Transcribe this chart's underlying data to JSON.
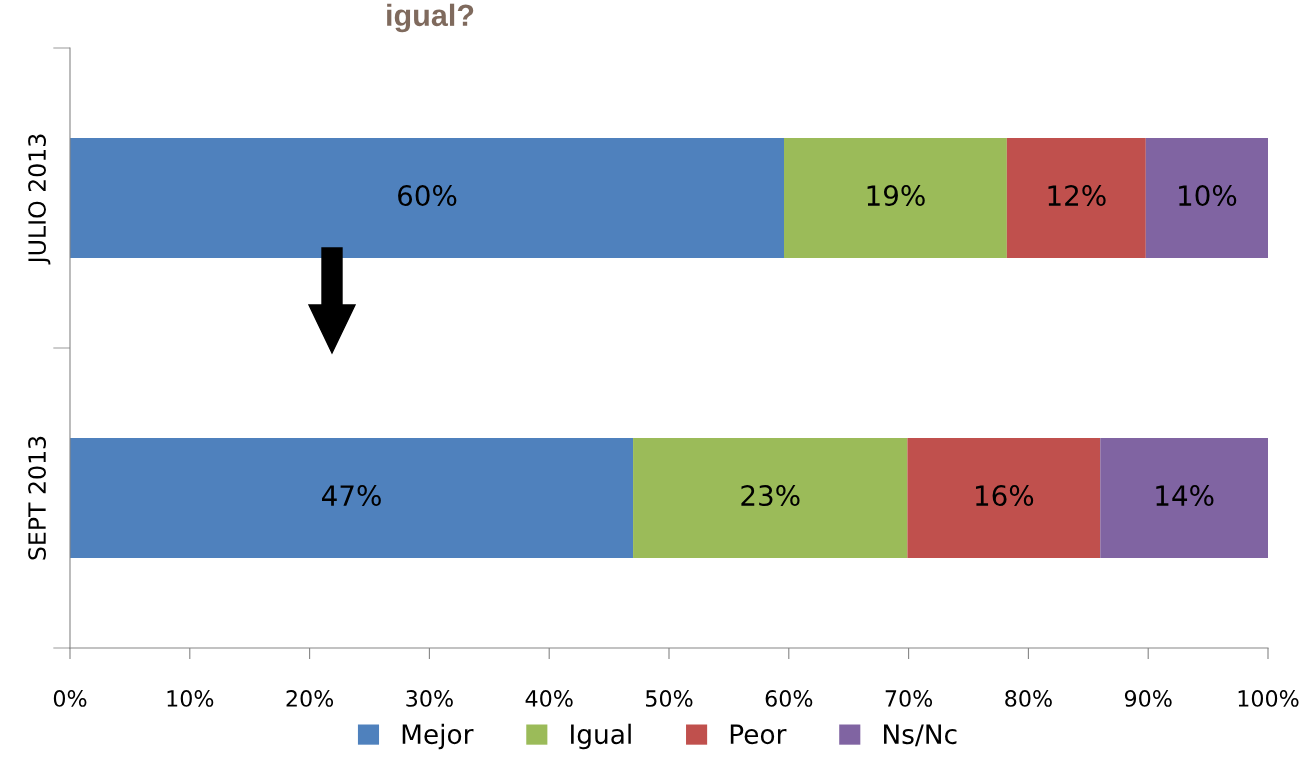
{
  "chart_data": {
    "type": "bar",
    "orientation": "horizontal",
    "stacked": true,
    "title": "igual?",
    "categories": [
      "JULIO 2013",
      "SEPT 2013"
    ],
    "series": [
      {
        "name": "Mejor",
        "color": "#4f81bd",
        "values": [
          59.6,
          47
        ],
        "value_labels": [
          "60%",
          "47%"
        ]
      },
      {
        "name": "Igual",
        "color": "#9bbb59",
        "values": [
          18.6,
          22.9
        ],
        "value_labels": [
          "19%",
          "23%"
        ]
      },
      {
        "name": "Peor",
        "color": "#c0504d",
        "values": [
          11.6,
          16.1
        ],
        "value_labels": [
          "12%",
          "16%"
        ]
      },
      {
        "name": "Ns/Nc",
        "color": "#8064a2",
        "values": [
          10.2,
          14
        ],
        "value_labels": [
          "10%",
          "14%"
        ]
      }
    ],
    "xlim": [
      0,
      100
    ],
    "xticks": [
      {
        "value": 0,
        "label": "0%"
      },
      {
        "value": 10,
        "label": "10%"
      },
      {
        "value": 20,
        "label": "20%"
      },
      {
        "value": 30,
        "label": "30%"
      },
      {
        "value": 40,
        "label": "40%"
      },
      {
        "value": 50,
        "label": "50%"
      },
      {
        "value": 60,
        "label": "60%"
      },
      {
        "value": 70,
        "label": "70%"
      },
      {
        "value": 80,
        "label": "80%"
      },
      {
        "value": 90,
        "label": "90%"
      },
      {
        "value": 100,
        "label": "100%"
      }
    ],
    "grid": false,
    "legend": "bottom"
  }
}
